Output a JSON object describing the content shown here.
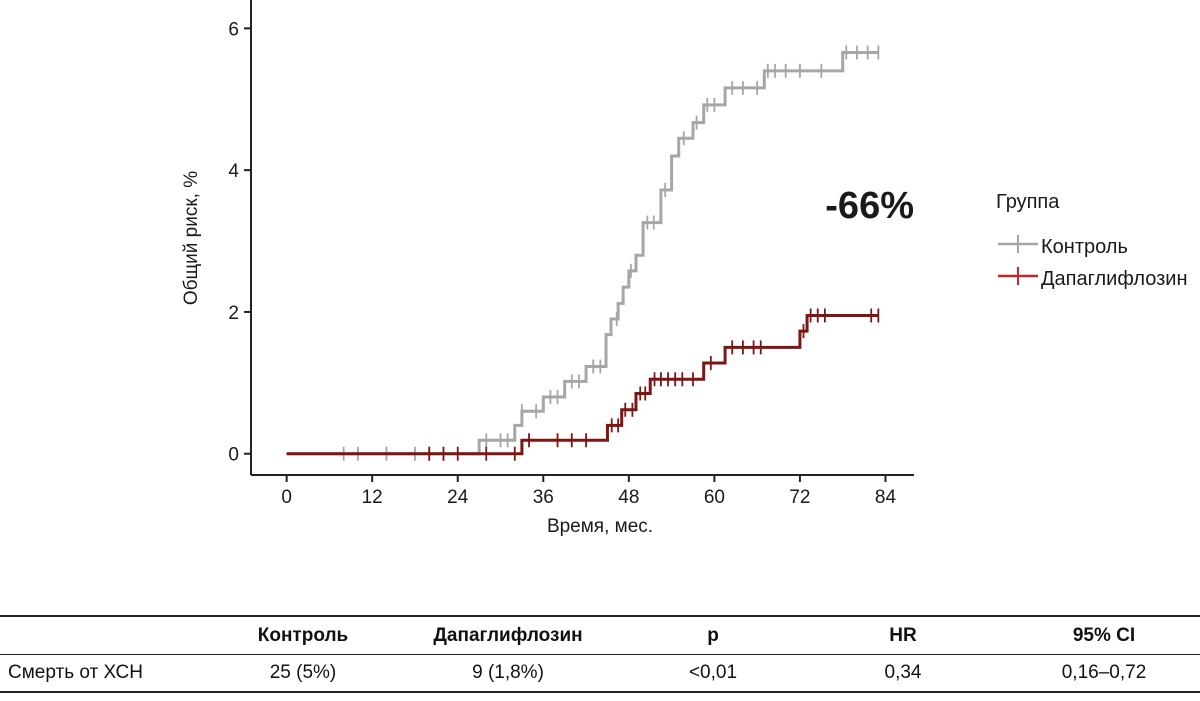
{
  "chart_data": {
    "type": "line",
    "step": true,
    "xlabel": "Время, мес.",
    "ylabel": "Общий риск, %",
    "xlim": [
      -5,
      88
    ],
    "ylim": [
      -0.3,
      6.4
    ],
    "xticks": [
      0,
      12,
      24,
      36,
      48,
      60,
      72,
      84
    ],
    "yticks": [
      0,
      2,
      4,
      6
    ],
    "legend": {
      "title": "Группа",
      "position": "right"
    },
    "annotation": {
      "text": "-66%",
      "color": "#c0282d"
    },
    "series": [
      {
        "name": "Контроль",
        "color": "#a6a6a6",
        "points": [
          [
            0,
            0
          ],
          [
            27,
            0.19
          ],
          [
            32,
            0.4
          ],
          [
            33,
            0.6
          ],
          [
            36,
            0.8
          ],
          [
            39,
            1.02
          ],
          [
            42,
            1.23
          ],
          [
            44.8,
            1.68
          ],
          [
            45.5,
            1.9
          ],
          [
            46.5,
            2.12
          ],
          [
            47.2,
            2.35
          ],
          [
            48,
            2.58
          ],
          [
            49,
            2.8
          ],
          [
            50,
            3.26
          ],
          [
            52.5,
            3.72
          ],
          [
            54,
            4.2
          ],
          [
            55,
            4.45
          ],
          [
            57,
            4.67
          ],
          [
            58.5,
            4.92
          ],
          [
            61.5,
            5.16
          ],
          [
            67,
            5.4
          ],
          [
            78,
            5.66
          ],
          [
            83,
            5.66
          ]
        ],
        "censor_x": [
          8,
          10,
          14,
          18,
          20,
          22,
          28,
          30,
          31,
          33,
          35,
          37,
          38,
          40,
          41,
          43,
          44,
          46.3,
          48.3,
          50.6,
          51.5,
          53.1,
          55.7,
          57.5,
          59,
          60,
          62.5,
          64,
          66,
          67.5,
          68.5,
          70,
          72,
          75,
          78.5,
          80,
          81.5,
          83
        ]
      },
      {
        "name": "Дапаглифлозин",
        "color": "#7d1514",
        "points": [
          [
            0,
            0
          ],
          [
            33,
            0.19
          ],
          [
            45,
            0.4
          ],
          [
            47,
            0.62
          ],
          [
            49,
            0.85
          ],
          [
            51,
            1.05
          ],
          [
            58.5,
            1.28
          ],
          [
            61.5,
            1.5
          ],
          [
            72,
            1.73
          ],
          [
            73,
            1.95
          ],
          [
            83,
            1.95
          ]
        ],
        "censor_x": [
          20,
          22,
          24,
          28,
          32,
          34,
          38,
          40,
          42,
          45.6,
          46.5,
          47.5,
          48.5,
          49.6,
          50.3,
          51.6,
          52.5,
          53.5,
          54.5,
          55.5,
          57,
          59.5,
          62.5,
          64,
          65.5,
          66.5,
          72.5,
          73.5,
          74.5,
          75.5,
          82,
          83
        ]
      }
    ]
  },
  "table": {
    "headers": [
      "",
      "Контроль",
      "Дапаглифлозин",
      "p",
      "HR",
      "95% CI"
    ],
    "rows": [
      [
        "Смерть от ХСН",
        "25 (5%)",
        "9 (1,8%)",
        "<0,01",
        "0,34",
        "0,16–0,72"
      ]
    ]
  }
}
